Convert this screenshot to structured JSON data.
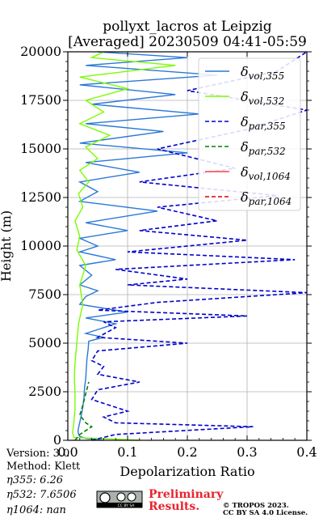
{
  "chart_data": {
    "type": "line",
    "title": "pollyxt_lacros at Leipzig",
    "subtitle": "[Averaged] 20230509 04:41-05:59",
    "xlabel": "Depolarization Ratio",
    "ylabel": "Height (m)",
    "xlim": [
      0,
      0.4
    ],
    "ylim": [
      0,
      20000
    ],
    "xticks": [
      "0.0",
      "0.1",
      "0.2",
      "0.3",
      "0.4"
    ],
    "yticks": [
      "0",
      "2500",
      "5000",
      "7500",
      "10000",
      "12500",
      "15000",
      "17500",
      "20000"
    ],
    "grid": true,
    "legend_position": "top-right",
    "legend": [
      {
        "sym": "δ",
        "sub": "vol,355",
        "color": "#2a78d8",
        "style": "solid"
      },
      {
        "sym": "δ",
        "sub": "vol,532",
        "color": "#7cfc00",
        "style": "solid"
      },
      {
        "sym": "δ",
        "sub": "par,355",
        "color": "#0000cd",
        "style": "dashed"
      },
      {
        "sym": "δ",
        "sub": "par,532",
        "color": "#008000",
        "style": "dashed"
      },
      {
        "sym": "δ",
        "sub": "vol,1064",
        "color": "#ff4040",
        "style": "solid"
      },
      {
        "sym": "δ",
        "sub": "par,1064",
        "color": "#e00000",
        "style": "dashed"
      }
    ],
    "series": [
      {
        "name": "vol,355",
        "color": "#2a78d8",
        "points": [
          [
            0.06,
            0
          ],
          [
            0.03,
            100
          ],
          [
            0.02,
            200
          ],
          [
            0.018,
            300
          ],
          [
            0.017,
            500
          ],
          [
            0.019,
            800
          ],
          [
            0.022,
            1200
          ],
          [
            0.025,
            1700
          ],
          [
            0.027,
            2200
          ],
          [
            0.028,
            2700
          ],
          [
            0.03,
            3200
          ],
          [
            0.031,
            3700
          ],
          [
            0.032,
            4200
          ],
          [
            0.034,
            4700
          ],
          [
            0.035,
            5100
          ],
          [
            0.06,
            5300
          ],
          [
            0.03,
            5500
          ],
          [
            0.08,
            6000
          ],
          [
            0.03,
            6300
          ],
          [
            0.1,
            6600
          ],
          [
            0.02,
            7000
          ],
          [
            0.03,
            7400
          ],
          [
            0.05,
            7700
          ],
          [
            0.02,
            8000
          ],
          [
            0.04,
            8500
          ],
          [
            0.02,
            9000
          ],
          [
            0.08,
            9300
          ],
          [
            0.02,
            9700
          ],
          [
            0.05,
            10000
          ],
          [
            0.02,
            10400
          ],
          [
            0.1,
            10800
          ],
          [
            0.03,
            11200
          ],
          [
            0.15,
            11800
          ],
          [
            0.02,
            12300
          ],
          [
            0.05,
            12800
          ],
          [
            0.02,
            13300
          ],
          [
            0.12,
            13800
          ],
          [
            0.03,
            14300
          ],
          [
            0.2,
            14800
          ],
          [
            0.02,
            15300
          ],
          [
            0.16,
            15900
          ],
          [
            0.03,
            16300
          ],
          [
            0.22,
            16800
          ],
          [
            0.04,
            17300
          ],
          [
            0.18,
            17800
          ],
          [
            0.02,
            18300
          ],
          [
            0.25,
            18800
          ],
          [
            0.03,
            19300
          ],
          [
            0.2,
            19700
          ],
          [
            0.05,
            20000
          ]
        ]
      },
      {
        "name": "vol,532",
        "color": "#7cfc00",
        "points": [
          [
            0.12,
            0
          ],
          [
            0.01,
            150
          ],
          [
            0.008,
            400
          ],
          [
            0.01,
            900
          ],
          [
            0.012,
            1600
          ],
          [
            0.012,
            2400
          ],
          [
            0.011,
            3200
          ],
          [
            0.012,
            4000
          ],
          [
            0.015,
            5000
          ],
          [
            0.018,
            6000
          ],
          [
            0.025,
            7000
          ],
          [
            0.02,
            8000
          ],
          [
            0.03,
            9000
          ],
          [
            0.015,
            9800
          ],
          [
            0.02,
            10500
          ],
          [
            0.012,
            11300
          ],
          [
            0.025,
            12000
          ],
          [
            0.018,
            12700
          ],
          [
            0.035,
            13300
          ],
          [
            0.02,
            13900
          ],
          [
            0.05,
            14500
          ],
          [
            0.03,
            15100
          ],
          [
            0.07,
            15700
          ],
          [
            0.02,
            16300
          ],
          [
            0.06,
            16900
          ],
          [
            0.03,
            17500
          ],
          [
            0.1,
            18100
          ],
          [
            0.02,
            18700
          ],
          [
            0.18,
            19300
          ],
          [
            0.04,
            19700
          ],
          [
            0.06,
            20000
          ]
        ]
      },
      {
        "name": "par,355",
        "color": "#0000cd",
        "dashed": true,
        "points": [
          [
            0.04,
            0
          ],
          [
            0.08,
            300
          ],
          [
            0.31,
            700
          ],
          [
            0.08,
            900
          ],
          [
            0.06,
            1200
          ],
          [
            0.1,
            1500
          ],
          [
            0.07,
            1800
          ],
          [
            0.04,
            2100
          ],
          [
            0.05,
            2600
          ],
          [
            0.12,
            3000
          ],
          [
            0.05,
            3400
          ],
          [
            0.06,
            3800
          ],
          [
            0.04,
            4100
          ],
          [
            0.05,
            4600
          ],
          [
            0.2,
            5000
          ],
          [
            0.05,
            5300
          ],
          [
            0.08,
            5800
          ],
          [
            0.06,
            6100
          ],
          [
            0.3,
            6400
          ],
          [
            0.05,
            6700
          ],
          [
            0.15,
            7100
          ],
          [
            0.4,
            7600
          ],
          [
            0.1,
            8000
          ],
          [
            0.2,
            8300
          ],
          [
            0.08,
            8800
          ],
          [
            0.38,
            9300
          ],
          [
            0.1,
            9700
          ],
          [
            0.3,
            10300
          ],
          [
            0.12,
            10800
          ],
          [
            0.25,
            11300
          ],
          [
            0.15,
            12000
          ],
          [
            0.35,
            12600
          ],
          [
            0.12,
            13300
          ],
          [
            0.28,
            14000
          ],
          [
            0.15,
            15000
          ],
          [
            0.3,
            16000
          ],
          [
            0.4,
            17000
          ],
          [
            0.2,
            18000
          ],
          [
            0.35,
            19000
          ],
          [
            0.4,
            20000
          ]
        ]
      },
      {
        "name": "par,532",
        "color": "#008000",
        "dashed": true,
        "points": [
          [
            0.012,
            0
          ],
          [
            0.02,
            300
          ],
          [
            0.04,
            700
          ],
          [
            0.03,
            900
          ],
          [
            0.02,
            1300
          ],
          [
            0.025,
            1800
          ],
          [
            0.03,
            2400
          ],
          [
            0.035,
            3000
          ]
        ]
      }
    ]
  },
  "info": {
    "version": "Version: 3.0",
    "method": "Method: Klett",
    "eta355": "η355:   6.26",
    "eta532": "η532: 7.6506",
    "eta1064": "η1064:    nan"
  },
  "badge": {
    "text": "CC BY SA"
  },
  "preliminary": {
    "line1": "Preliminary",
    "line2": "Results."
  },
  "copyright": {
    "line1": "© TROPOS 2023.",
    "line2": "CC BY SA 4.0 License."
  },
  "colors": {
    "grid": "#b0b0b0",
    "prelim": "#e8242d"
  }
}
